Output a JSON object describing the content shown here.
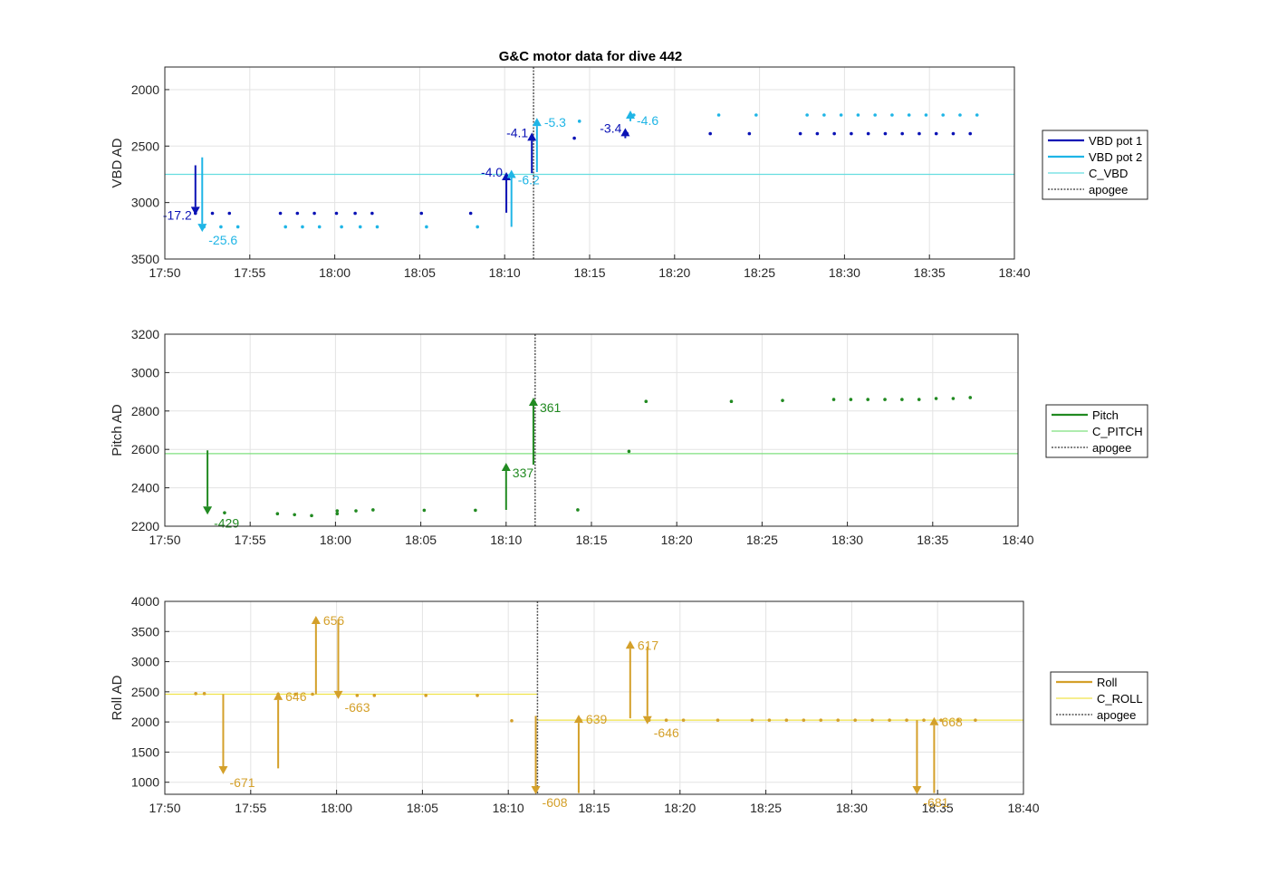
{
  "title": "G&C motor data for dive 442",
  "x_ticks": [
    "17:50",
    "17:55",
    "18:00",
    "18:05",
    "18:10",
    "18:15",
    "18:20",
    "18:25",
    "18:30",
    "18:35",
    "18:40"
  ],
  "colors": {
    "vbd1": "#0a12b5",
    "vbd2": "#1fb5e6",
    "c_vbd": "#66dde0",
    "pitch": "#218a21",
    "c_pitch": "#7fe07f",
    "roll": "#d4a02a",
    "c_roll": "#f0e34a",
    "apogee": "#555555"
  },
  "chart_data": [
    {
      "type": "scatter",
      "ylabel": "VBD AD",
      "xlim": [
        0,
        50
      ],
      "ylim": [
        3500,
        1800
      ],
      "y_reversed": true,
      "yticks": [
        2000,
        2500,
        3000,
        3500
      ],
      "x_units": "minutes after 17:50",
      "apogee_x": 21.7,
      "legend": {
        "placement": "right",
        "entries": [
          "VBD pot 1",
          "VBD pot 2",
          "C_VBD",
          "apogee"
        ]
      },
      "reference_lines": [
        {
          "name": "C_VBD",
          "y": 2750
        }
      ],
      "series": [
        {
          "name": "VBD pot 1",
          "x": [
            1.8,
            2.8,
            3.8,
            6.8,
            7.8,
            8.8,
            10.1,
            11.2,
            12.2,
            15.1,
            18.0,
            24.1,
            27.2,
            32.1,
            34.4,
            37.4,
            38.4,
            39.4,
            40.4,
            41.4,
            42.4,
            43.4,
            44.4,
            45.4,
            46.4,
            47.4
          ],
          "y": [
            3095,
            3095,
            3095,
            3095,
            3095,
            3095,
            3095,
            3095,
            3095,
            3095,
            3095,
            2430,
            2390,
            2390,
            2390,
            2390,
            2390,
            2390,
            2390,
            2390,
            2390,
            2390,
            2390,
            2390,
            2390,
            2390
          ]
        },
        {
          "name": "VBD pot 2",
          "x": [
            2.3,
            3.3,
            4.3,
            7.1,
            8.1,
            9.1,
            10.4,
            11.5,
            12.5,
            15.4,
            18.4,
            24.4,
            27.6,
            32.6,
            34.8,
            37.8,
            38.8,
            39.8,
            40.8,
            41.8,
            42.8,
            43.8,
            44.8,
            45.8,
            46.8,
            47.8
          ],
          "y": [
            3215,
            3215,
            3215,
            3215,
            3215,
            3215,
            3215,
            3215,
            3215,
            3215,
            3215,
            2280,
            2225,
            2225,
            2225,
            2225,
            2225,
            2225,
            2225,
            2225,
            2225,
            2225,
            2225,
            2225,
            2225,
            2225
          ]
        }
      ],
      "moves": [
        {
          "series": "VBD pot 1",
          "x": 1.8,
          "y_from": 2670,
          "y_to": 3110,
          "label": "-17.2",
          "label_side": "left"
        },
        {
          "series": "VBD pot 2",
          "x": 2.2,
          "y_from": 2600,
          "y_to": 3260,
          "label": "-25.6",
          "label_side": "below-right"
        },
        {
          "series": "VBD pot 1",
          "x": 20.1,
          "y_from": 3090,
          "y_to": 2730,
          "label": "-4.0",
          "label_side": "left"
        },
        {
          "series": "VBD pot 2",
          "x": 20.4,
          "y_from": 3215,
          "y_to": 2710,
          "label": "-6.2",
          "label_side": "below-right"
        },
        {
          "series": "VBD pot 1",
          "x": 21.6,
          "y_from": 2740,
          "y_to": 2380,
          "label": "-4.1",
          "label_side": "left"
        },
        {
          "series": "VBD pot 2",
          "x": 21.9,
          "y_from": 2730,
          "y_to": 2250,
          "label": "-5.3",
          "label_side": "right"
        },
        {
          "series": "VBD pot 1",
          "x": 27.1,
          "y_from": 2430,
          "y_to": 2340,
          "label": "-3.4",
          "label_side": "left"
        },
        {
          "series": "VBD pot 2",
          "x": 27.4,
          "y_from": 2280,
          "y_to": 2185,
          "label": "-4.6",
          "label_side": "below-right"
        }
      ]
    },
    {
      "type": "scatter",
      "ylabel": "Pitch AD",
      "xlim": [
        0,
        50
      ],
      "ylim": [
        2200,
        3200
      ],
      "yticks": [
        2200,
        2400,
        2600,
        2800,
        3000,
        3200
      ],
      "x_units": "minutes after 17:50",
      "apogee_x": 21.7,
      "legend": {
        "placement": "right",
        "entries": [
          "Pitch",
          "C_PITCH",
          "apogee"
        ]
      },
      "reference_lines": [
        {
          "name": "C_PITCH",
          "y": 2578
        }
      ],
      "series": [
        {
          "name": "Pitch",
          "x": [
            3.5,
            6.6,
            7.6,
            8.6,
            10.1,
            11.2,
            12.2,
            15.2,
            18.2,
            24.2,
            27.2,
            28.2,
            33.2,
            36.2,
            39.2,
            40.2,
            41.2,
            42.2,
            43.2,
            44.2,
            45.2,
            46.2,
            47.2
          ],
          "y": [
            2270,
            2265,
            2260,
            2255,
            2280,
            2280,
            2285,
            2283,
            2283,
            2285,
            2590,
            2850,
            2850,
            2855,
            2860,
            2860,
            2860,
            2860,
            2860,
            2860,
            2865,
            2865,
            2870
          ]
        },
        {
          "name": "Pitch",
          "x": [
            10.1
          ],
          "y": [
            2265
          ]
        }
      ],
      "moves": [
        {
          "series": "Pitch",
          "x": 2.5,
          "y_from": 2595,
          "y_to": 2260,
          "label": "-429",
          "label_side": "below-right"
        },
        {
          "series": "Pitch",
          "x": 20.0,
          "y_from": 2285,
          "y_to": 2530,
          "label": "337",
          "label_side": "below-right"
        },
        {
          "series": "Pitch",
          "x": 21.6,
          "y_from": 2520,
          "y_to": 2870,
          "label": "361",
          "label_side": "below-right"
        }
      ]
    },
    {
      "type": "scatter",
      "ylabel": "Roll AD",
      "xlim": [
        0,
        50
      ],
      "ylim": [
        800,
        4000
      ],
      "yticks": [
        1000,
        1500,
        2000,
        2500,
        3000,
        3500,
        4000
      ],
      "x_units": "minutes after 17:50",
      "apogee_x": 21.7,
      "legend": {
        "placement": "right",
        "entries": [
          "Roll",
          "C_ROLL",
          "apogee"
        ]
      },
      "reference_lines": [
        {
          "name": "C_ROLL",
          "y": 2460,
          "x_to": 21.7
        },
        {
          "name": "C_ROLL",
          "y": 2030,
          "x_from": 21.7
        }
      ],
      "series": [
        {
          "name": "Roll",
          "x": [
            1.8,
            2.3,
            6.6,
            7.6,
            8.6,
            10.1,
            11.2,
            12.2,
            15.2,
            18.2,
            20.2,
            24.2,
            28.2,
            29.2,
            30.2,
            32.2,
            34.2,
            35.2,
            36.2,
            37.2,
            38.2,
            39.2,
            40.2,
            41.2,
            42.2,
            43.2,
            44.2,
            45.2,
            46.2,
            47.2
          ],
          "y": [
            2470,
            2470,
            2460,
            2460,
            2460,
            2440,
            2440,
            2440,
            2440,
            2440,
            2020,
            2030,
            2030,
            2030,
            2030,
            2030,
            2030,
            2030,
            2030,
            2030,
            2030,
            2030,
            2030,
            2030,
            2030,
            2030,
            2030,
            2030,
            2030,
            2030
          ]
        }
      ],
      "moves": [
        {
          "series": "Roll",
          "x": 3.4,
          "y_from": 2460,
          "y_to": 1130,
          "label": "-671",
          "label_side": "below-right"
        },
        {
          "series": "Roll",
          "x": 6.6,
          "y_from": 1230,
          "y_to": 2500,
          "label": "646",
          "label_side": "right"
        },
        {
          "series": "Roll",
          "x": 8.8,
          "y_from": 2460,
          "y_to": 3760,
          "label": "656",
          "label_side": "right"
        },
        {
          "series": "Roll",
          "x": 10.1,
          "y_from": 3700,
          "y_to": 2380,
          "label": "-663",
          "label_side": "below-right"
        },
        {
          "series": "Roll",
          "x": 21.6,
          "y_from": 2100,
          "y_to": 800,
          "label": "-608",
          "label_side": "below-right"
        },
        {
          "series": "Roll",
          "x": 24.1,
          "y_from": 820,
          "y_to": 2120,
          "label": "639",
          "label_side": "right"
        },
        {
          "series": "Roll",
          "x": 27.1,
          "y_from": 2060,
          "y_to": 3350,
          "label": "617",
          "label_side": "right"
        },
        {
          "series": "Roll",
          "x": 28.1,
          "y_from": 3250,
          "y_to": 1960,
          "label": "-646",
          "label_side": "below-right"
        },
        {
          "series": "Roll",
          "x": 43.8,
          "y_from": 2030,
          "y_to": 800,
          "label": "-681",
          "label_side": "below-right"
        },
        {
          "series": "Roll",
          "x": 44.8,
          "y_from": 820,
          "y_to": 2080,
          "label": "668",
          "label_side": "right"
        }
      ]
    }
  ]
}
